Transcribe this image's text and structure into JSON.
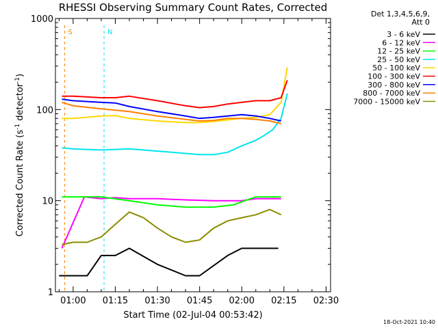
{
  "chart_data": {
    "type": "line",
    "title": "RHESSI Observing Summary Count Rates, Corrected",
    "xlabel": "Start Time (02-Jul-04 00:53:42)",
    "ylabel_main": "Corrected Count Rate (s",
    "ylabel_sup1": "-1",
    "ylabel_mid": " detector",
    "ylabel_sup2": "-1",
    "ylabel_end": ")",
    "yscale": "log",
    "ylim": [
      1,
      1000
    ],
    "y_ticks": [
      "1",
      "10",
      "100",
      "1000"
    ],
    "xlim_minutes": [
      53.7,
      151.6
    ],
    "x_ticks": [
      {
        "label": "01:00",
        "min": 60
      },
      {
        "label": "01:15",
        "min": 75
      },
      {
        "label": "01:30",
        "min": 90
      },
      {
        "label": "01:45",
        "min": 105
      },
      {
        "label": "02:00",
        "min": 120
      },
      {
        "label": "02:15",
        "min": 135
      },
      {
        "label": "02:30",
        "min": 150
      }
    ],
    "legend_header": [
      "Det 1,3,4,5,6,9,",
      "Att 0"
    ],
    "legend_placement": "right",
    "markers": [
      {
        "label": "S",
        "min": 57.0,
        "color": "#ff7f00"
      },
      {
        "label": "N",
        "min": 71.0,
        "color": "#00e5ee"
      }
    ],
    "series": [
      {
        "name": "3 - 6 keV",
        "color": "#000000",
        "x": [
          55,
          65,
          70,
          75,
          80,
          90,
          100,
          105,
          115,
          120,
          125,
          133
        ],
        "y": [
          1.5,
          1.5,
          2.5,
          2.5,
          3,
          2,
          1.5,
          1.5,
          2.5,
          3,
          3,
          3
        ]
      },
      {
        "name": "6 - 12 keV",
        "color": "#ff00ff",
        "x": [
          56,
          64,
          70,
          75,
          80,
          90,
          100,
          110,
          120,
          125,
          130,
          134
        ],
        "y": [
          3,
          11,
          10.5,
          10.8,
          10.5,
          10.5,
          10.2,
          10,
          10,
          10.5,
          10.5,
          10.5
        ]
      },
      {
        "name": "12 - 25 keV",
        "color": "#00ff00",
        "x": [
          56,
          60,
          70,
          80,
          90,
          100,
          110,
          117,
          125,
          130,
          134
        ],
        "y": [
          11,
          11,
          11,
          10,
          9,
          8.5,
          8.5,
          9,
          11,
          11,
          11
        ]
      },
      {
        "name": "25 - 50 keV",
        "color": "#00e5ee",
        "x": [
          56,
          60,
          70,
          80,
          90,
          100,
          105,
          110,
          115,
          120,
          125,
          128,
          131,
          134,
          136.2
        ],
        "y": [
          38,
          37,
          36,
          37,
          35,
          33,
          32,
          32,
          34,
          40,
          46,
          52,
          60,
          80,
          150
        ]
      },
      {
        "name": "50 - 100 keV",
        "color": "#ffd700",
        "x": [
          56,
          60,
          70,
          75,
          80,
          90,
          100,
          105,
          110,
          115,
          120,
          125,
          130,
          134,
          136.2
        ],
        "y": [
          80,
          80,
          85,
          86,
          80,
          75,
          72,
          72,
          74,
          77,
          80,
          82,
          88,
          120,
          290
        ]
      },
      {
        "name": "100 - 300 keV",
        "color": "#ff0000",
        "x": [
          56,
          60,
          70,
          75,
          80,
          90,
          100,
          105,
          110,
          115,
          120,
          125,
          130,
          134,
          136.2
        ],
        "y": [
          140,
          140,
          135,
          135,
          140,
          125,
          110,
          105,
          108,
          115,
          120,
          125,
          125,
          135,
          210
        ]
      },
      {
        "name": "300 - 800 keV",
        "color": "#0000ff",
        "x": [
          56,
          60,
          70,
          75,
          80,
          90,
          100,
          105,
          110,
          115,
          120,
          125,
          130,
          134
        ],
        "y": [
          130,
          125,
          120,
          118,
          108,
          95,
          85,
          80,
          82,
          85,
          88,
          85,
          80,
          75
        ]
      },
      {
        "name": "800 - 7000 keV",
        "color": "#ff7f00",
        "x": [
          56,
          60,
          70,
          80,
          90,
          100,
          105,
          110,
          115,
          120,
          125,
          130,
          134
        ],
        "y": [
          120,
          110,
          102,
          95,
          85,
          78,
          75,
          76,
          80,
          80,
          78,
          75,
          70
        ]
      },
      {
        "name": "7000 - 15000 keV",
        "color": "#8b8b00",
        "x": [
          56,
          60,
          65,
          70,
          75,
          80,
          85,
          90,
          95,
          100,
          105,
          110,
          115,
          120,
          125,
          130,
          134
        ],
        "y": [
          3.3,
          3.5,
          3.5,
          4,
          5.5,
          7.5,
          6.5,
          5,
          4,
          3.5,
          3.7,
          5,
          6,
          6.5,
          7,
          8,
          7
        ]
      }
    ]
  },
  "timestamp": "18-Oct-2021 10:40"
}
